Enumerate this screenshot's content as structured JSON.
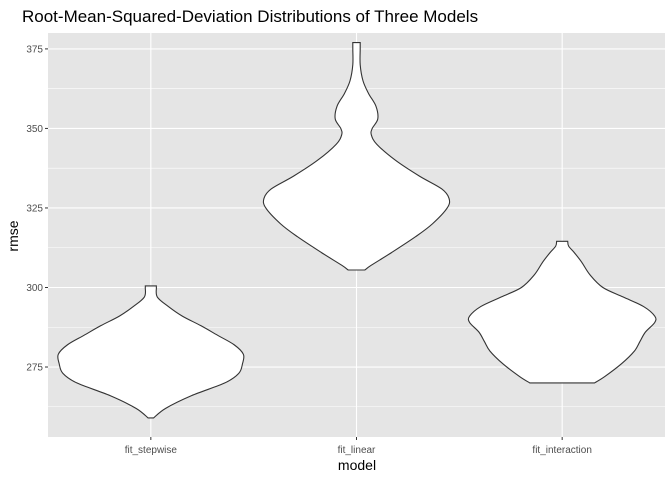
{
  "chart_data": {
    "type": "violin",
    "title": "Root-Mean-Squared-Deviation Distributions of Three Models",
    "xlabel": "model",
    "ylabel": "rmse",
    "categories": [
      "fit_stepwise",
      "fit_linear",
      "fit_interaction"
    ],
    "y_ticks": [
      275,
      300,
      325,
      350,
      375
    ],
    "ylim": [
      253,
      380
    ],
    "grid": true,
    "panel_background": "#e5e5e5",
    "grid_color": "#ffffff",
    "violin_fill": "#ffffff",
    "violin_stroke": "#333333",
    "series": [
      {
        "category": "fit_stepwise",
        "range": [
          259,
          300.5
        ],
        "profile": [
          [
            259,
            0.03
          ],
          [
            262,
            0.16
          ],
          [
            266,
            0.44
          ],
          [
            270,
            0.8
          ],
          [
            273,
            0.95
          ],
          [
            276,
            0.99
          ],
          [
            279,
            1.0
          ],
          [
            282,
            0.9
          ],
          [
            285,
            0.72
          ],
          [
            288,
            0.54
          ],
          [
            291,
            0.34
          ],
          [
            294,
            0.19
          ],
          [
            297,
            0.07
          ],
          [
            300,
            0.06
          ],
          [
            300.5,
            0.06
          ]
        ]
      },
      {
        "category": "fit_linear",
        "range": [
          305.5,
          377
        ],
        "profile": [
          [
            305.5,
            0.09
          ],
          [
            307,
            0.16
          ],
          [
            311,
            0.38
          ],
          [
            316,
            0.64
          ],
          [
            320,
            0.82
          ],
          [
            325,
            0.98
          ],
          [
            328,
            1.0
          ],
          [
            331,
            0.92
          ],
          [
            335,
            0.68
          ],
          [
            340,
            0.42
          ],
          [
            345,
            0.22
          ],
          [
            348,
            0.16
          ],
          [
            350,
            0.17
          ],
          [
            353,
            0.23
          ],
          [
            357,
            0.21
          ],
          [
            361,
            0.13
          ],
          [
            365,
            0.07
          ],
          [
            370,
            0.04
          ],
          [
            375,
            0.04
          ],
          [
            377,
            0.04
          ]
        ]
      },
      {
        "category": "fit_interaction",
        "range": [
          270,
          314.5
        ],
        "profile": [
          [
            270,
            0.35
          ],
          [
            272,
            0.46
          ],
          [
            276,
            0.64
          ],
          [
            280,
            0.78
          ],
          [
            283,
            0.84
          ],
          [
            286,
            0.9
          ],
          [
            289,
            1.0
          ],
          [
            291,
            1.0
          ],
          [
            294,
            0.88
          ],
          [
            297,
            0.66
          ],
          [
            300,
            0.44
          ],
          [
            304,
            0.3
          ],
          [
            308,
            0.21
          ],
          [
            311,
            0.13
          ],
          [
            313,
            0.07
          ],
          [
            314.5,
            0.06
          ]
        ]
      }
    ]
  }
}
